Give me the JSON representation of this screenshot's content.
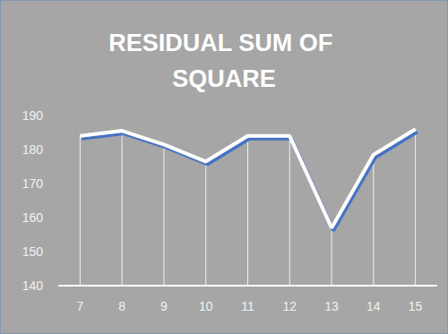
{
  "chart_data": {
    "type": "line",
    "title": "RESIDUAL SUM OF SQUARE",
    "categories": [
      "7",
      "8",
      "9",
      "10",
      "11",
      "12",
      "13",
      "14",
      "15"
    ],
    "values": [
      184,
      185.5,
      181.5,
      176.5,
      184,
      184,
      157,
      178.5,
      186
    ],
    "color": "#ffffff",
    "ylim": [
      140,
      190
    ],
    "yticks": [
      140,
      150,
      160,
      170,
      180,
      190
    ],
    "grid": false
  }
}
